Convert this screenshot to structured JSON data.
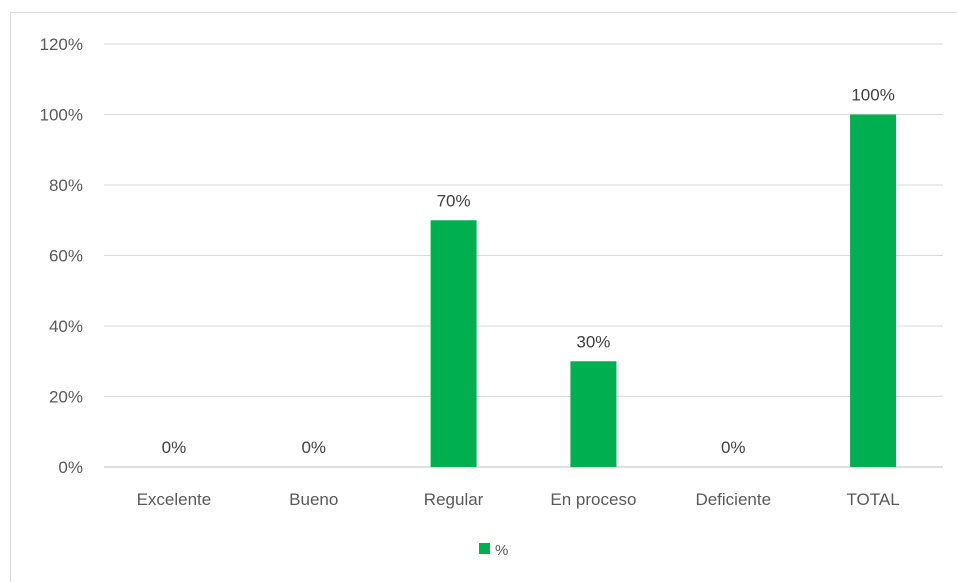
{
  "chart_data": {
    "type": "bar",
    "categories": [
      "Excelente",
      "Bueno",
      "Regular",
      "En proceso",
      "Deficiente",
      "TOTAL"
    ],
    "series": [
      {
        "name": "%",
        "values": [
          0,
          0,
          70,
          30,
          0,
          100
        ],
        "color": "#00b050"
      }
    ],
    "data_labels": [
      "0%",
      "0%",
      "70%",
      "30%",
      "0%",
      "100%"
    ],
    "y_ticks": [
      "0%",
      "20%",
      "40%",
      "60%",
      "80%",
      "100%",
      "120%"
    ],
    "y_tick_values": [
      0,
      20,
      40,
      60,
      80,
      100,
      120
    ],
    "ylim": [
      0,
      120
    ],
    "grid": true,
    "legend": {
      "position": "bottom",
      "label": "%"
    },
    "title": "",
    "xlabel": "",
    "ylabel": ""
  }
}
